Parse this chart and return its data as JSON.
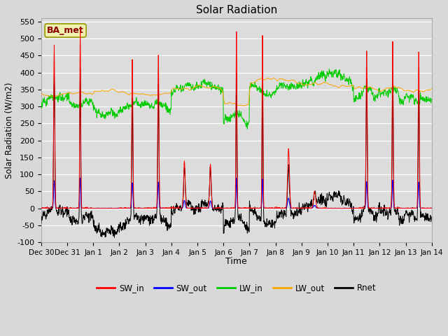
{
  "title": "Solar Radiation",
  "xlabel": "Time",
  "ylabel": "Solar Radiation (W/m2)",
  "ylim": [
    -100,
    560
  ],
  "yticks": [
    -100,
    -50,
    0,
    50,
    100,
    150,
    200,
    250,
    300,
    350,
    400,
    450,
    500,
    550
  ],
  "fig_bg": "#d8d8d8",
  "plot_bg": "#dcdcdc",
  "legend_colors": [
    "#ff0000",
    "#0000ff",
    "#00cc00",
    "#ffa500",
    "#000000"
  ],
  "legend_labels": [
    "SW_in",
    "SW_out",
    "LW_in",
    "LW_out",
    "Rnet"
  ],
  "station_label": "BA_met",
  "tick_labels": [
    "Dec 30",
    "Dec 31",
    "Jan 1",
    "Jan 2",
    "Jan 3",
    "Jan 4",
    "Jan 5",
    "Jan 6",
    "Jan 7",
    "Jan 8",
    "Jan 9",
    "Jan 10",
    "Jan 11",
    "Jan 12",
    "Jan 13",
    "Jan 14"
  ]
}
